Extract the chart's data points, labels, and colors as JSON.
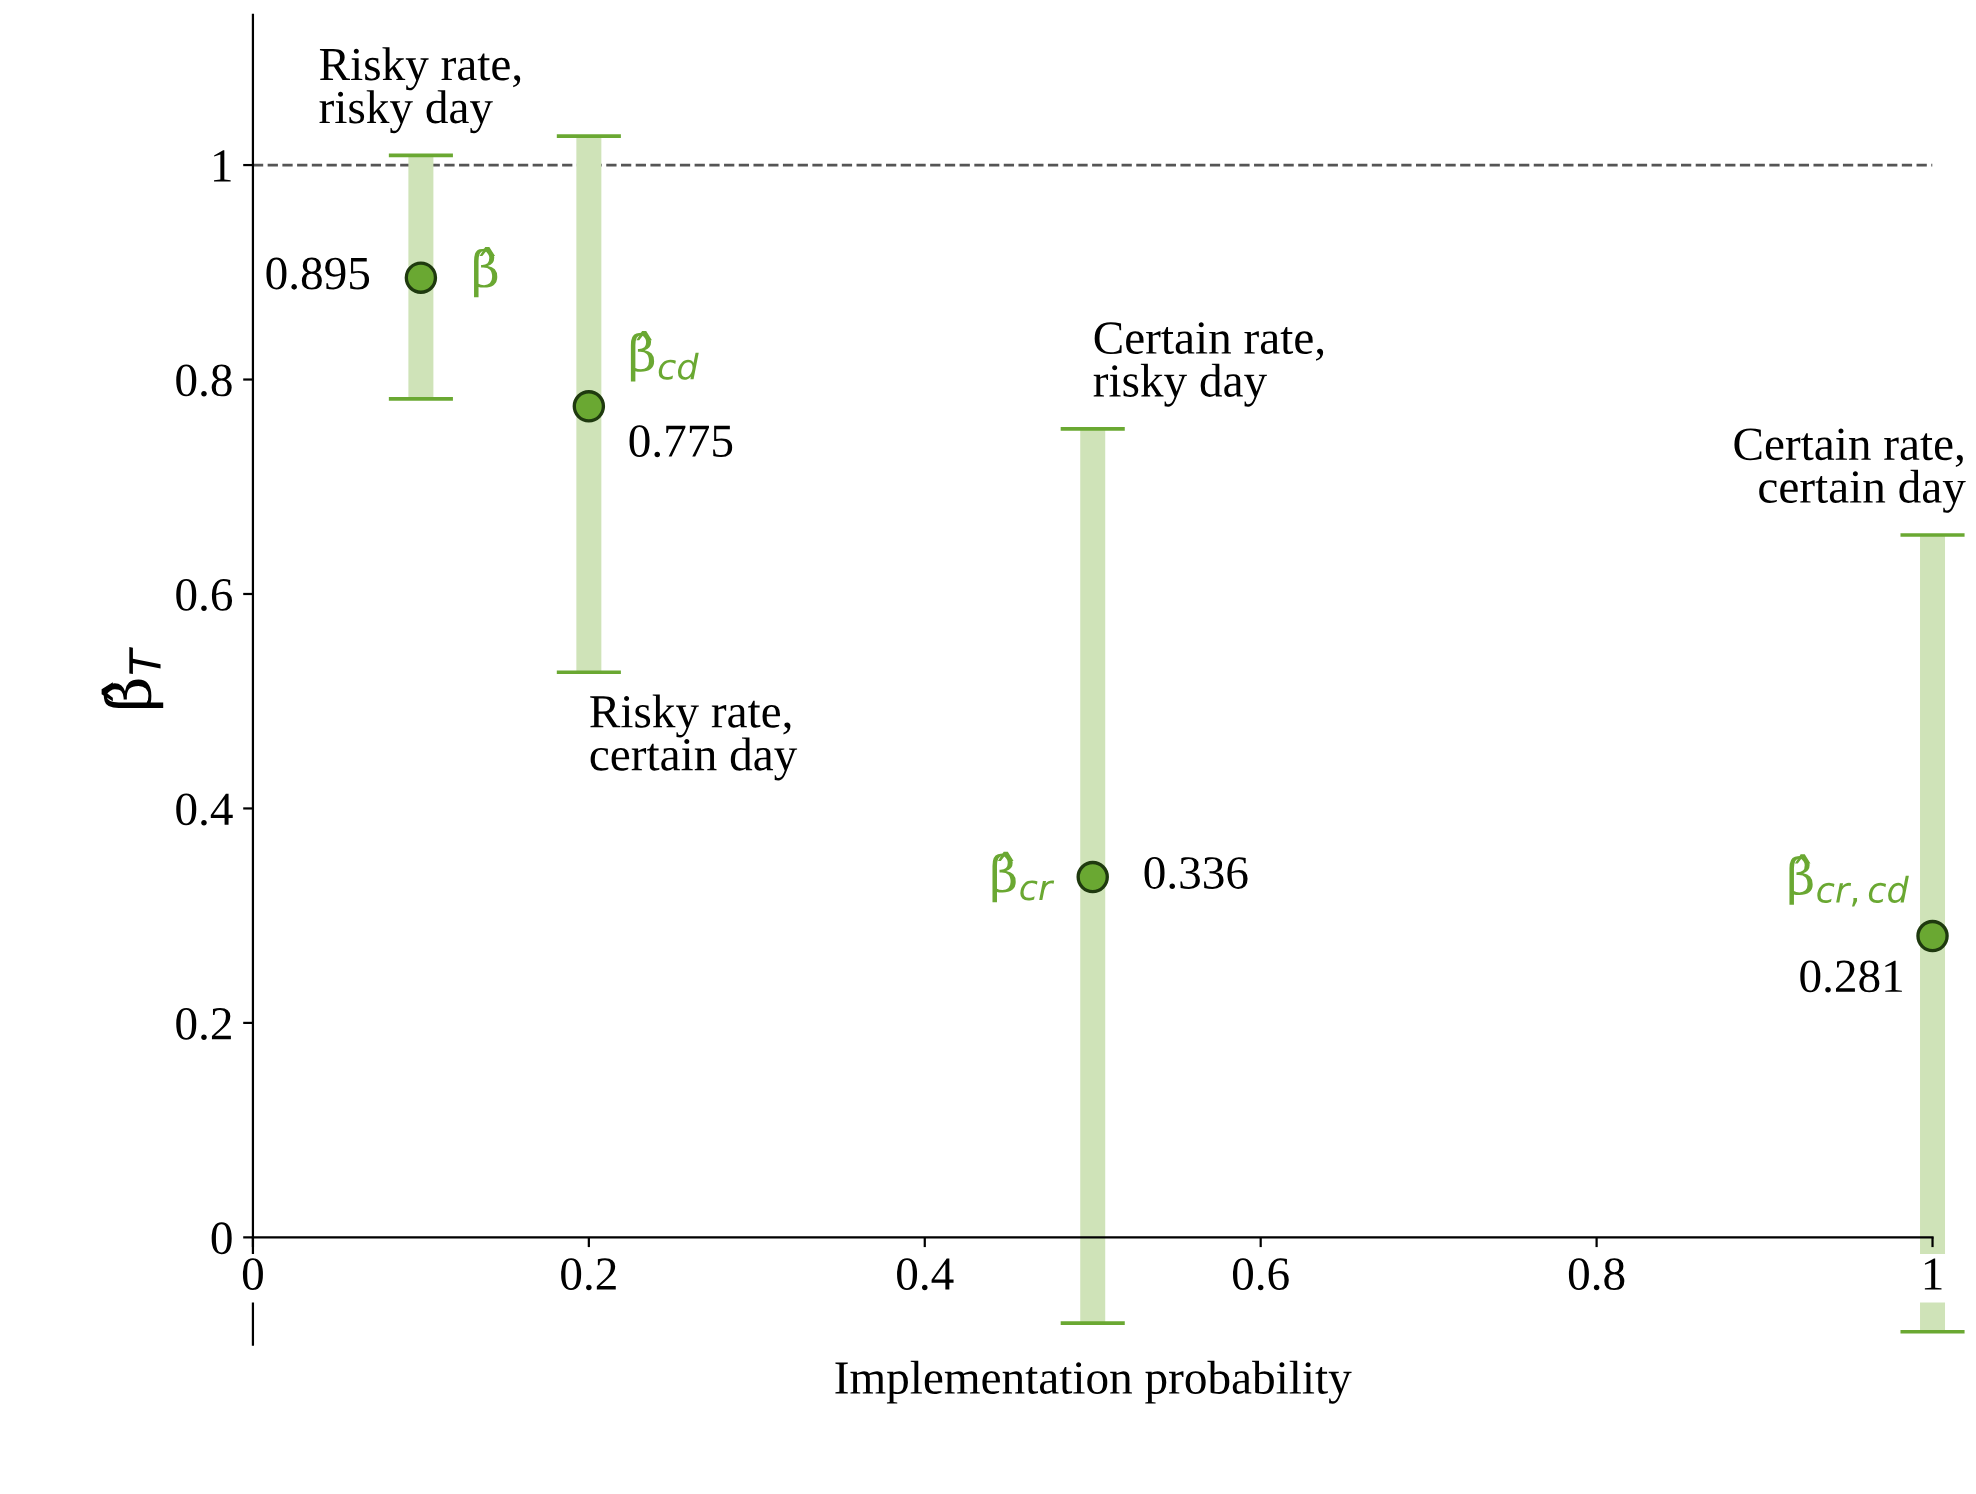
{
  "chart_data": {
    "type": "scatter",
    "xlabel": "Implementation probability",
    "ylabel": "β̂$_{T}$",
    "xlim": [
      0,
      1
    ],
    "ylim": [
      -0.1,
      1.14
    ],
    "xticks": [
      0,
      0.2,
      0.4,
      0.6,
      0.8,
      1
    ],
    "yticks": [
      0,
      0.2,
      0.4,
      0.6,
      0.8,
      1
    ],
    "grid": false,
    "legend": false,
    "marker": "circle",
    "ref_lines": [
      {
        "axis": "y",
        "value": 1,
        "color": "#555555",
        "line_style": "dashed"
      }
    ],
    "series": [
      {
        "name": "β̂",
        "color": "#6aa832",
        "x": [
          0.1
        ],
        "values": [
          0.895
        ],
        "errors": [
          [
            0.782,
            1.009
          ]
        ],
        "value_labels": [
          "0.895"
        ]
      },
      {
        "name": "β̂$_{cd}$",
        "color": "#6aa832",
        "x": [
          0.2
        ],
        "values": [
          0.775
        ],
        "errors": [
          [
            0.527,
            1.027
          ]
        ],
        "value_labels": [
          "0.775"
        ]
      },
      {
        "name": "β̂$_{cr}$",
        "color": "#6aa832",
        "x": [
          0.5
        ],
        "values": [
          0.336
        ],
        "errors": [
          [
            -0.08,
            0.754
          ]
        ],
        "value_labels": [
          "0.336"
        ]
      },
      {
        "name": "β̂$_{cr,cd}$",
        "color": "#6aa832",
        "x": [
          1
        ],
        "values": [
          0.281
        ],
        "errors": [
          [
            -0.088,
            0.655
          ]
        ],
        "value_labels": [
          "0.281"
        ]
      }
    ],
    "annotations": [
      {
        "text": "Risky rate,\nrisky day",
        "x": 0.1,
        "y": 1.009
      },
      {
        "text": "Risky rate,\ncertain day",
        "x": 0.2,
        "y": 0.527
      },
      {
        "text": "Certain rate,\nrisky day",
        "x": 0.5,
        "y": 0.754
      },
      {
        "text": "Certain rate,\ncertain day",
        "x": 1,
        "y": 0.655
      }
    ]
  }
}
